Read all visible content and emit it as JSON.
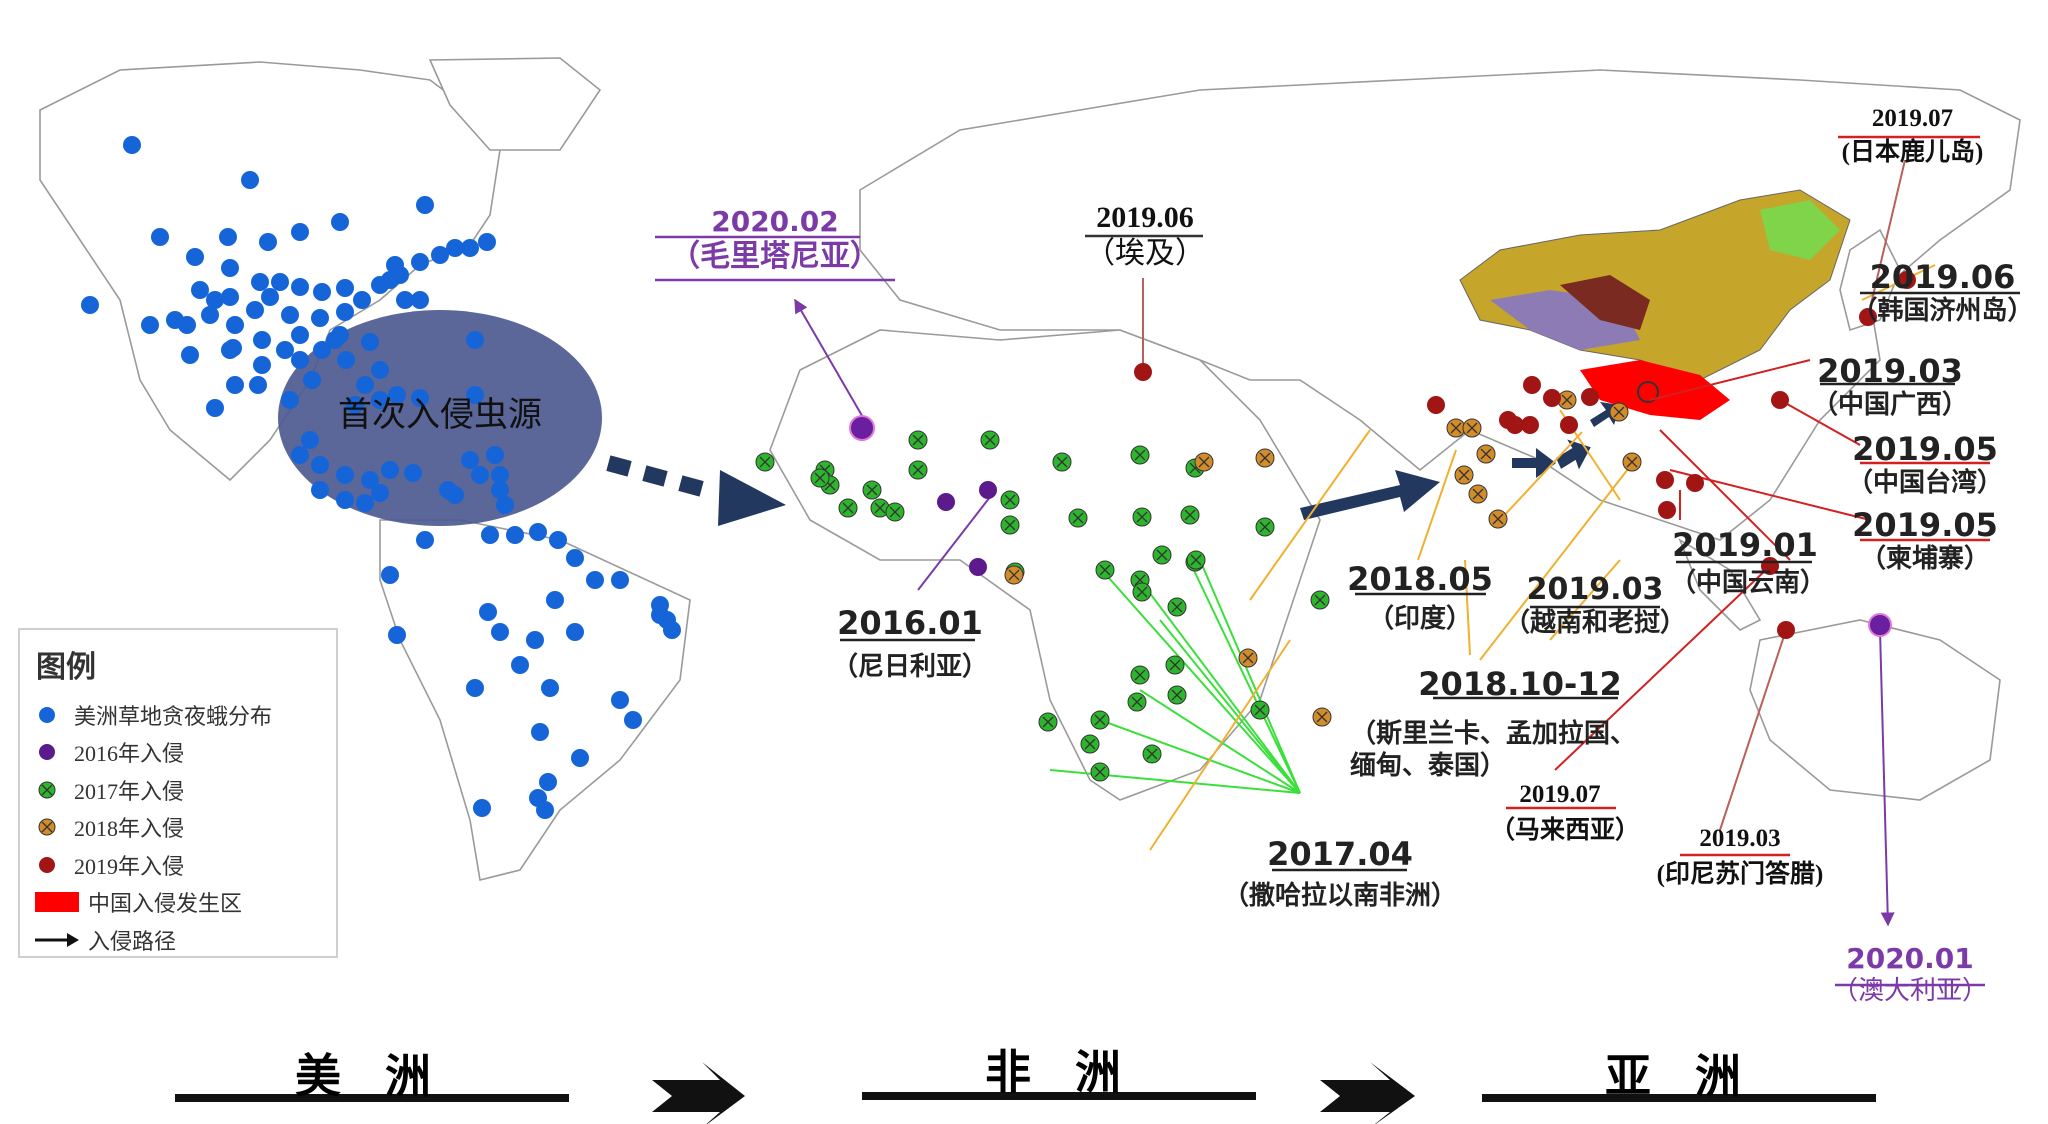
{
  "colors": {
    "america": "#1565d8",
    "y2016": "#5c1a8c",
    "y2017": "#2db52d",
    "y2018": "#d28c2a",
    "y2019": "#a11515",
    "china_area": "#ff0000",
    "arrow": "#22385f",
    "purple_label": "#7b3aa8",
    "red_line": "#d32020",
    "orange_line": "#f0b030",
    "green_line": "#39e039",
    "brown_line": "#b8605a",
    "source_ellipse": "#4d5a8f"
  },
  "source_label": "首次入侵虫源",
  "legend": {
    "title": "图例",
    "items": [
      {
        "label": "美洲草地贪夜蛾分布",
        "symbol": "dot-america"
      },
      {
        "label": "2016年入侵",
        "symbol": "dot-2016"
      },
      {
        "label": "2017年入侵",
        "symbol": "dot-2017"
      },
      {
        "label": "2018年入侵",
        "symbol": "dot-2018"
      },
      {
        "label": "2019年入侵",
        "symbol": "dot-2019"
      },
      {
        "label": "中国入侵发生区",
        "symbol": "china-rect"
      },
      {
        "label": "入侵路径",
        "symbol": "path-arrow"
      }
    ]
  },
  "annotations": {
    "mauritania": {
      "date": "2020.02",
      "place": "（毛里塔尼亚）"
    },
    "egypt": {
      "date": "2019.06",
      "place": "（埃及）"
    },
    "nigeria": {
      "date": "2016.01",
      "place": "（尼日利亚）"
    },
    "subsaharan": {
      "date": "2017.04",
      "place": "（撒哈拉以南非洲）"
    },
    "india": {
      "date": "2018.05",
      "place": "（印度）"
    },
    "vietnam_laos": {
      "date": "2019.03",
      "place": "（越南和老挝）"
    },
    "south_asia": {
      "date": "2018.10-12",
      "place": "（斯里兰卡、孟加拉国、",
      "place2": "缅甸、泰国）"
    },
    "malaysia": {
      "date": "2019.07",
      "place": "（马来西亚）"
    },
    "sumatra": {
      "date": "2019.03",
      "place": "(印尼苏门答腊)"
    },
    "yunnan": {
      "date": "2019.01",
      "place": "（中国云南）"
    },
    "guangxi": {
      "date": "2019.03",
      "place": "（中国广西）"
    },
    "taiwan": {
      "date": "2019.05",
      "place": "（中国台湾）"
    },
    "cambodia": {
      "date": "2019.05",
      "place": "（柬埔寨）"
    },
    "jeju": {
      "date": "2019.06",
      "place": "（韩国济州岛）"
    },
    "kagoshima": {
      "date": "2019.07",
      "place": "(日本鹿儿岛)"
    },
    "australia": {
      "date": "2020.01",
      "place": "（澳大利亚）"
    }
  },
  "continents": {
    "america": "美 洲",
    "africa": "非 洲",
    "asia": "亚 洲"
  }
}
